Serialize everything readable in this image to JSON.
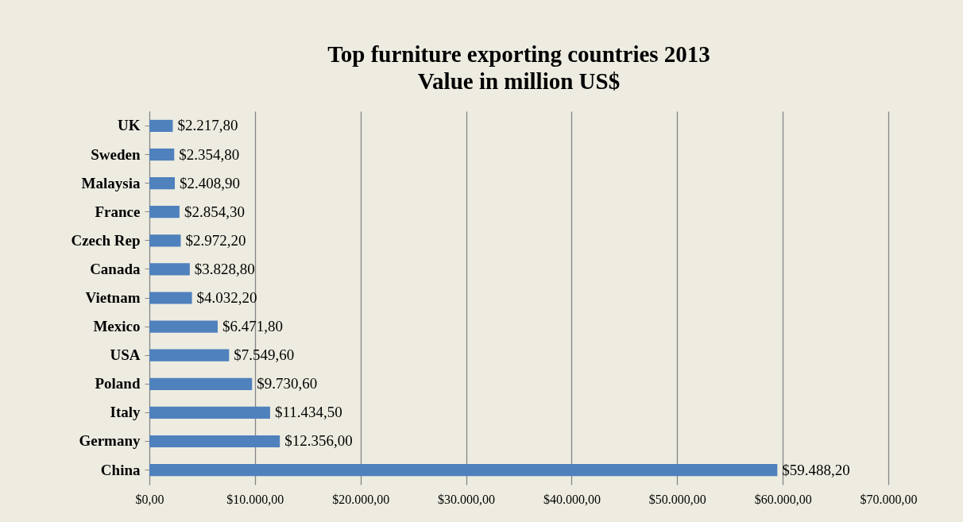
{
  "chart_data": {
    "type": "bar",
    "orientation": "horizontal",
    "title": [
      "Top furniture exporting countries 2013",
      "Value in million US$"
    ],
    "categories": [
      "UK",
      "Sweden",
      "Malaysia",
      "France",
      "Czech Rep",
      "Canada",
      "Vietnam",
      "Mexico",
      "USA",
      "Poland",
      "Italy",
      "Germany",
      "China"
    ],
    "values": [
      2217.8,
      2354.8,
      2408.9,
      2854.3,
      2972.2,
      3828.8,
      4032.2,
      6471.8,
      7549.6,
      9730.6,
      11434.5,
      12356.0,
      59488.2
    ],
    "value_labels": [
      "$2.217,80",
      "$2.354,80",
      "$2.408,90",
      "$2.854,30",
      "$2.972,20",
      "$3.828,80",
      "$4.032,20",
      "$6.471,80",
      "$7.549,60",
      "$9.730,60",
      "$11.434,50",
      "$12.356,00",
      "$59.488,20"
    ],
    "color": "#4f81bd",
    "xlim": [
      0,
      70000
    ],
    "xticks": [
      {
        "value": 0,
        "label": "$0,00"
      },
      {
        "value": 10000,
        "label": "$10.000,00"
      },
      {
        "value": 20000,
        "label": "$20.000,00"
      },
      {
        "value": 30000,
        "label": "$30.000,00"
      },
      {
        "value": 40000,
        "label": "$40.000,00"
      },
      {
        "value": 50000,
        "label": "$50.000,00"
      },
      {
        "value": 60000,
        "label": "$60.000,00"
      },
      {
        "value": 70000,
        "label": "$70.000,00"
      }
    ],
    "grid": "x"
  }
}
